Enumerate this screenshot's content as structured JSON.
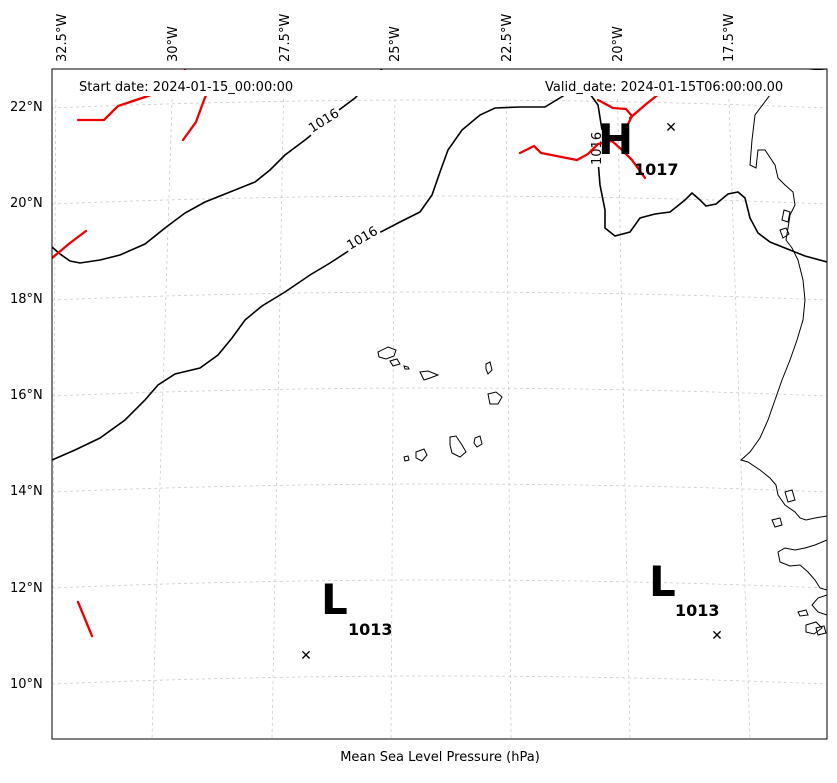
{
  "map": {
    "start_date": "Start date: 2024-01-15_00:00:00",
    "valid_date": "Valid_date: 2024-01-15T06:00:00.00",
    "caption": "Mean Sea Level Pressure (hPa)"
  },
  "lon_labels": [
    "32.5°W",
    "30°W",
    "27.5°W",
    "25°W",
    "22.5°W",
    "20°W",
    "17.5°W"
  ],
  "lat_labels": [
    "22°N",
    "20°N",
    "18°N",
    "16°N",
    "14°N",
    "12°N",
    "10°N"
  ],
  "isobars": [
    {
      "label": "1016"
    },
    {
      "label": "1016"
    },
    {
      "label": "1016"
    }
  ],
  "centers": [
    {
      "type": "H",
      "value": "1017"
    },
    {
      "type": "L",
      "value": "1013"
    },
    {
      "type": "L",
      "value": "1013"
    }
  ],
  "colors": {
    "isobar": "#000000",
    "front": "#ee0000",
    "grid": "#cccccc",
    "coast": "#000000"
  }
}
